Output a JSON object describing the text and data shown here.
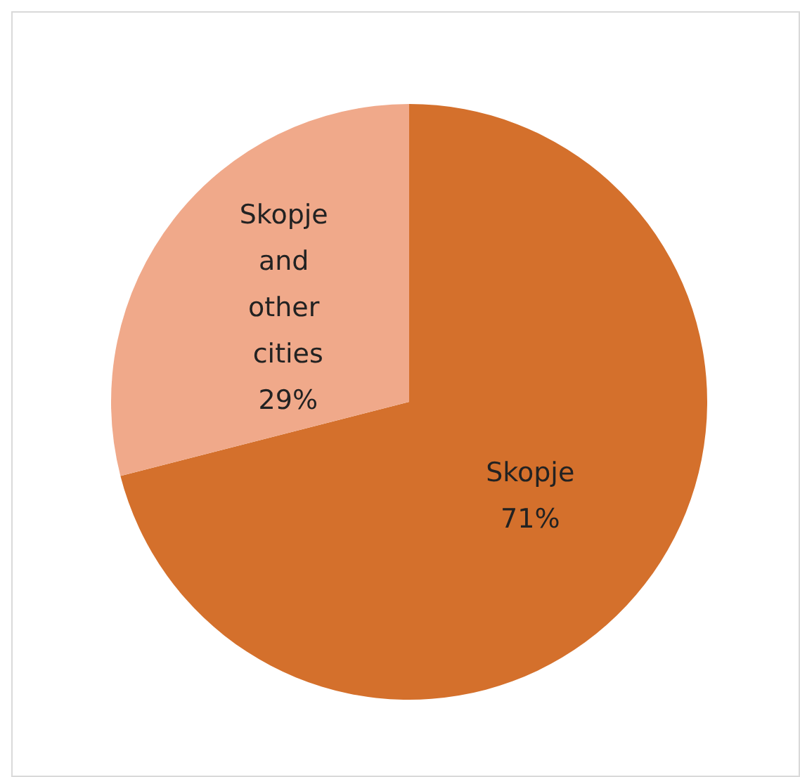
{
  "chart_data": {
    "type": "pie",
    "categories": [
      "Skopje",
      "Skopje and other cities"
    ],
    "values": [
      71,
      29
    ],
    "colors": [
      "#d4702c",
      "#f0a98a"
    ],
    "value_labels": [
      "71%",
      "29%"
    ]
  }
}
